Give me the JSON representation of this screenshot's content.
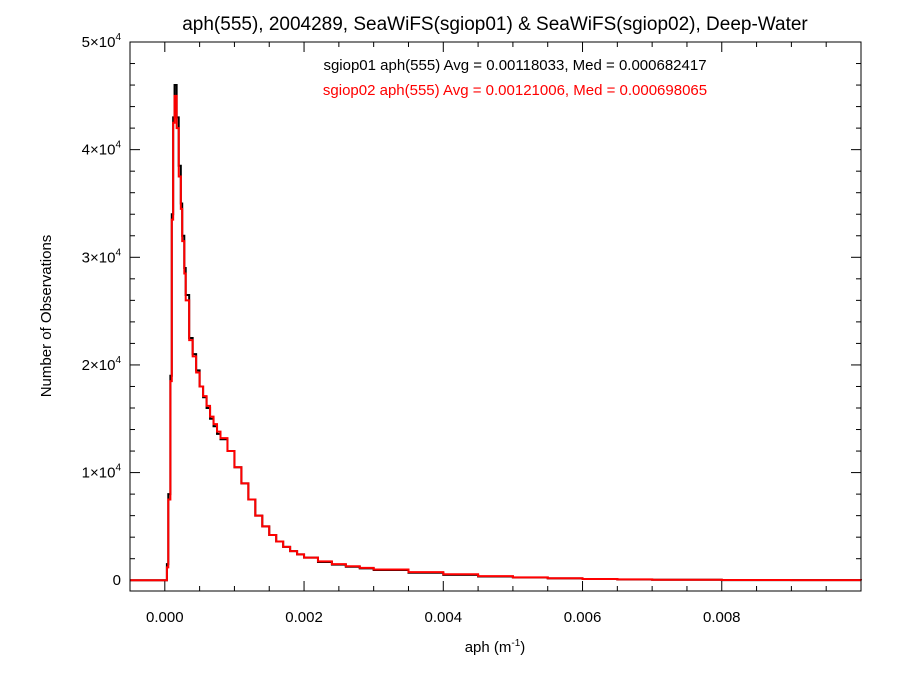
{
  "chart_data": {
    "type": "line",
    "subtype": "step-histogram",
    "title": "aph(555), 2004289, SeaWiFS(sgiop01) & SeaWiFS(sgiop02), Deep-Water",
    "xlabel": "aph (m",
    "xlabel_sup": "-1",
    "xlabel_close": ")",
    "ylabel": "Number of Observations",
    "xlim": [
      -0.0005,
      0.01
    ],
    "ylim": [
      -1000,
      50000
    ],
    "xticks": [
      {
        "v": 0.0,
        "label": "0.000"
      },
      {
        "v": 0.002,
        "label": "0.002"
      },
      {
        "v": 0.004,
        "label": "0.004"
      },
      {
        "v": 0.006,
        "label": "0.006"
      },
      {
        "v": 0.008,
        "label": "0.008"
      }
    ],
    "yticks": [
      {
        "v": 0,
        "label": "0",
        "sup": ""
      },
      {
        "v": 10000,
        "label": "1×10",
        "sup": "4"
      },
      {
        "v": 20000,
        "label": "2×10",
        "sup": "4"
      },
      {
        "v": 30000,
        "label": "3×10",
        "sup": "4"
      },
      {
        "v": 40000,
        "label": "4×10",
        "sup": "4"
      },
      {
        "v": 50000,
        "label": "5×10",
        "sup": "4"
      }
    ],
    "annotations": [
      {
        "text": "sgiop01 aph(555) Avg = 0.00118033, Med = 0.000682417",
        "color": "#000000"
      },
      {
        "text": "sgiop02 aph(555) Avg = 0.00121006, Med = 0.000698065",
        "color": "#ff0000"
      }
    ],
    "series": [
      {
        "color": "#000000",
        "x": [
          -0.0005,
          0.0,
          3e-05,
          5e-05,
          8e-05,
          0.0001,
          0.00012,
          0.00014,
          0.00017,
          0.0002,
          0.00023,
          0.00025,
          0.00028,
          0.0003,
          0.00035,
          0.0004,
          0.00045,
          0.0005,
          0.00055,
          0.0006,
          0.00065,
          0.0007,
          0.00075,
          0.0008,
          0.0009,
          0.001,
          0.0011,
          0.0012,
          0.0013,
          0.0014,
          0.0015,
          0.0016,
          0.0017,
          0.0018,
          0.0019,
          0.002,
          0.0022,
          0.0024,
          0.0026,
          0.0028,
          0.003,
          0.0035,
          0.004,
          0.0045,
          0.005,
          0.0055,
          0.006,
          0.0065,
          0.007,
          0.008,
          0.009,
          0.01
        ],
        "y": [
          0,
          0,
          1500,
          8000,
          19000,
          34000,
          43000,
          46000,
          43000,
          38500,
          35000,
          32000,
          29000,
          26500,
          22500,
          21000,
          19500,
          18000,
          17000,
          16000,
          15000,
          14300,
          13600,
          13100,
          12000,
          10500,
          9000,
          7500,
          6000,
          5000,
          4200,
          3600,
          3100,
          2700,
          2400,
          2100,
          1700,
          1450,
          1250,
          1100,
          950,
          700,
          500,
          350,
          250,
          170,
          110,
          70,
          40,
          15,
          5,
          0
        ]
      },
      {
        "color": "#ff0000",
        "x": [
          -0.0005,
          0.0,
          3e-05,
          5e-05,
          8e-05,
          0.0001,
          0.00012,
          0.00014,
          0.00017,
          0.0002,
          0.00023,
          0.00025,
          0.00028,
          0.0003,
          0.00035,
          0.0004,
          0.00045,
          0.0005,
          0.00055,
          0.0006,
          0.00065,
          0.0007,
          0.00075,
          0.0008,
          0.0009,
          0.001,
          0.0011,
          0.0012,
          0.0013,
          0.0014,
          0.0015,
          0.0016,
          0.0017,
          0.0018,
          0.0019,
          0.002,
          0.0022,
          0.0024,
          0.0026,
          0.0028,
          0.003,
          0.0035,
          0.004,
          0.0045,
          0.005,
          0.0055,
          0.006,
          0.0065,
          0.007,
          0.008,
          0.009,
          0.01
        ],
        "y": [
          0,
          0,
          1200,
          7500,
          18500,
          33500,
          42500,
          45000,
          42000,
          37500,
          34500,
          31500,
          28500,
          26000,
          22300,
          20800,
          19300,
          18000,
          17100,
          16200,
          15200,
          14500,
          13800,
          13200,
          12000,
          10500,
          9000,
          7500,
          6000,
          5000,
          4200,
          3600,
          3100,
          2700,
          2400,
          2100,
          1750,
          1500,
          1300,
          1150,
          1000,
          750,
          550,
          380,
          270,
          180,
          120,
          80,
          45,
          18,
          6,
          0
        ]
      }
    ]
  }
}
